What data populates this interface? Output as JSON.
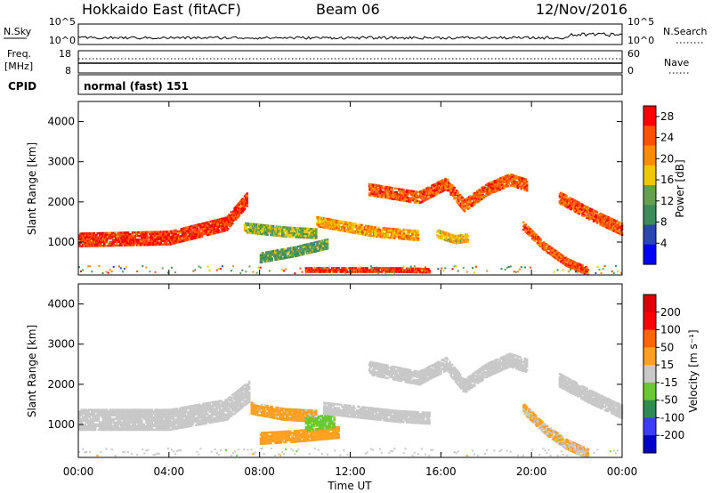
{
  "header": {
    "radar": "Hokkaido East (fitACF)",
    "beam": "Beam 06",
    "date": "12/Nov/2016"
  },
  "strip": {
    "nsky_label": "N.Sky",
    "nsky_ticks": [
      "10^5",
      "10^0"
    ],
    "nsearch_label": "N.Search",
    "nsearch_ticks": [
      "10^5",
      "10^0"
    ],
    "freq_label": "Freq.",
    "freq_unit": "[MHz]",
    "freq_ticks": [
      "18",
      "8"
    ],
    "nave_label": "Nave",
    "nave_ticks": [
      "60",
      "0"
    ],
    "cpid_label": "CPID",
    "cpid_value": "normal (fast) 151"
  },
  "chart_data": [
    {
      "type": "heatmap",
      "name": "power",
      "ylabel": "Slant Range [km]",
      "yticks": [
        "1000",
        "2000",
        "3000",
        "4000"
      ],
      "ylim": [
        180,
        4500
      ],
      "xlim_hours": [
        0,
        24
      ],
      "colorbar": {
        "label": "Power [dB]",
        "ticks": [
          "4",
          "8",
          "12",
          "16",
          "20",
          "24",
          "28"
        ],
        "colors": [
          "#0000ff",
          "#2846b4",
          "#3c8c5a",
          "#64a050",
          "#f0c800",
          "#ff8c00",
          "#ff5000",
          "#ff0000"
        ],
        "range": [
          0,
          30
        ]
      },
      "echo_bands": [
        {
          "t": [
            0.0,
            4.0,
            6.5,
            7.4
          ],
          "center": [
            1050,
            1100,
            1450,
            2050
          ],
          "width": 350,
          "level": 26
        },
        {
          "t": [
            7.3,
            9.0,
            10.5
          ],
          "center": [
            1350,
            1250,
            1200
          ],
          "width": 250,
          "level": 14
        },
        {
          "t": [
            8.0,
            9.5,
            11.0
          ],
          "center": [
            600,
            750,
            950
          ],
          "width": 250,
          "level": 12
        },
        {
          "t": [
            10.5,
            13.0,
            15.0
          ],
          "center": [
            1500,
            1250,
            1150
          ],
          "width": 250,
          "level": 20
        },
        {
          "t": [
            10.0,
            14.0,
            15.5
          ],
          "center": [
            300,
            300,
            280
          ],
          "width": 120,
          "level": 26
        },
        {
          "t": [
            12.8,
            15.0,
            16.2,
            17.0,
            18.0,
            19.0,
            19.8
          ],
          "center": [
            2300,
            2100,
            2450,
            1900,
            2300,
            2550,
            2400
          ],
          "width": 300,
          "level": 24
        },
        {
          "t": [
            15.8,
            16.6,
            17.2
          ],
          "center": [
            1200,
            1050,
            1100
          ],
          "width": 200,
          "level": 18
        },
        {
          "t": [
            19.6,
            20.5,
            21.5,
            22.5
          ],
          "center": [
            1400,
            900,
            500,
            250
          ],
          "width": 220,
          "level": 24
        },
        {
          "t": [
            21.2,
            22.5,
            24.0
          ],
          "center": [
            2100,
            1700,
            1300
          ],
          "width": 300,
          "level": 24
        }
      ]
    },
    {
      "type": "heatmap",
      "name": "velocity",
      "ylabel": "Slant Range [km]",
      "yticks": [
        "1000",
        "2000",
        "3000",
        "4000"
      ],
      "ylim": [
        180,
        4500
      ],
      "xlim_hours": [
        0,
        24
      ],
      "colorbar": {
        "label": "Velocity [m s⁻¹]",
        "ticks": [
          "200",
          "100",
          "50",
          "15",
          "-15",
          "-50",
          "-100",
          "-200"
        ],
        "colors": [
          "#0000c8",
          "#3c3cff",
          "#2e8b57",
          "#6ac832",
          "#c8c8c8",
          "#ffa020",
          "#ff6400",
          "#ff0000",
          "#dc0000"
        ],
        "range": [
          -250,
          250
        ]
      },
      "echo_bands": [
        {
          "t": [
            0.0,
            4.0,
            6.5,
            7.5
          ],
          "center": [
            1100,
            1100,
            1350,
            1800
          ],
          "width": 500,
          "level": -5
        },
        {
          "t": [
            7.6,
            9.0,
            10.5
          ],
          "center": [
            1400,
            1250,
            1200
          ],
          "width": 300,
          "level": 40
        },
        {
          "t": [
            8.0,
            9.5,
            11.5
          ],
          "center": [
            650,
            700,
            800
          ],
          "width": 300,
          "level": 60
        },
        {
          "t": [
            10.0,
            11.3
          ],
          "center": [
            1000,
            1100
          ],
          "width": 350,
          "level": -40
        },
        {
          "t": [
            10.8,
            14.0,
            15.5
          ],
          "center": [
            1400,
            1200,
            1150
          ],
          "width": 300,
          "level": 5
        },
        {
          "t": [
            12.8,
            15.0,
            16.2,
            17.0,
            18.0,
            19.0,
            19.8
          ],
          "center": [
            2400,
            2150,
            2500,
            1950,
            2350,
            2600,
            2450
          ],
          "width": 350,
          "level": 5
        },
        {
          "t": [
            19.6,
            20.5,
            21.5,
            22.5
          ],
          "center": [
            1400,
            900,
            500,
            250
          ],
          "width": 250,
          "level": 30
        },
        {
          "t": [
            21.2,
            22.5,
            24.0
          ],
          "center": [
            2100,
            1700,
            1300
          ],
          "width": 350,
          "level": 8
        }
      ]
    }
  ],
  "xaxis": {
    "ticks": [
      "00:00",
      "04:00",
      "08:00",
      "12:00",
      "16:00",
      "20:00",
      "00:00"
    ],
    "label": "Time UT"
  }
}
